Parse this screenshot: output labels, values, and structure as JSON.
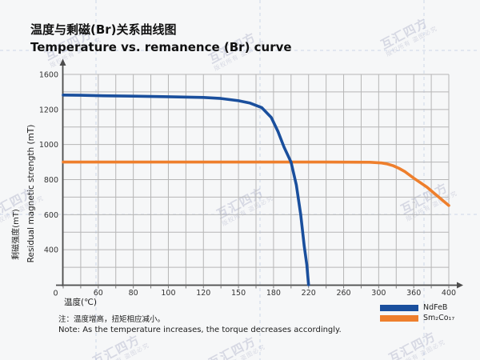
{
  "header": {
    "title_zh": "温度与剩磁(Br)关系曲线图",
    "title_en": "Temperature vs. remanence (Br) curve"
  },
  "note": {
    "zh": "注：温度增高，扭矩相应减小。",
    "en": "Note: As the temperature increases, the torque decreases accordingly."
  },
  "watermark": {
    "line1": "互汇四方",
    "line2": "版权所有 盗图必究"
  },
  "chart_data": {
    "type": "line",
    "title": "温度与剩磁(Br)关系曲线图 / Temperature vs. remanence (Br) curve",
    "xlabel": "温度(℃)",
    "ylabel_zh": "剩磁强度(mT)",
    "ylabel_en": "Residual magnetic strength (mT)",
    "origin_label": "0",
    "x_tick_values": [
      0,
      60,
      80,
      100,
      120,
      150,
      180,
      220,
      260,
      300,
      360,
      400
    ],
    "y_tick_values": [
      0,
      400,
      600,
      800,
      1000,
      1200,
      1600
    ],
    "xlim": [
      0,
      400
    ],
    "ylim": [
      0,
      1600
    ],
    "grid": true,
    "legend_position": "bottom-right",
    "axis_note": "tick labels are evenly spaced even though values are non-uniform",
    "grid_color": "#b6b6b6",
    "axis_color": "#4d4d4d",
    "tick_text_color": "#333333",
    "series": [
      {
        "name": "NdFeB",
        "color": "#1a4f9d",
        "points": [
          [
            0,
            1365
          ],
          [
            30,
            1362
          ],
          [
            60,
            1357
          ],
          [
            80,
            1352
          ],
          [
            100,
            1345
          ],
          [
            120,
            1337
          ],
          [
            135,
            1325
          ],
          [
            150,
            1300
          ],
          [
            160,
            1272
          ],
          [
            170,
            1220
          ],
          [
            178,
            1155
          ],
          [
            185,
            1075
          ],
          [
            192,
            985
          ],
          [
            200,
            900
          ],
          [
            206,
            770
          ],
          [
            211,
            600
          ],
          [
            215,
            420
          ],
          [
            218,
            230
          ],
          [
            220,
            0
          ]
        ]
      },
      {
        "name": "Sm₂Co₁₇",
        "color": "#ee7f2d",
        "points": [
          [
            0,
            900
          ],
          [
            60,
            900
          ],
          [
            120,
            900
          ],
          [
            180,
            900
          ],
          [
            240,
            900
          ],
          [
            290,
            899
          ],
          [
            305,
            895
          ],
          [
            315,
            889
          ],
          [
            325,
            879
          ],
          [
            335,
            864
          ],
          [
            345,
            845
          ],
          [
            360,
            808
          ],
          [
            375,
            757
          ],
          [
            385,
            715
          ],
          [
            400,
            652
          ]
        ]
      }
    ]
  }
}
